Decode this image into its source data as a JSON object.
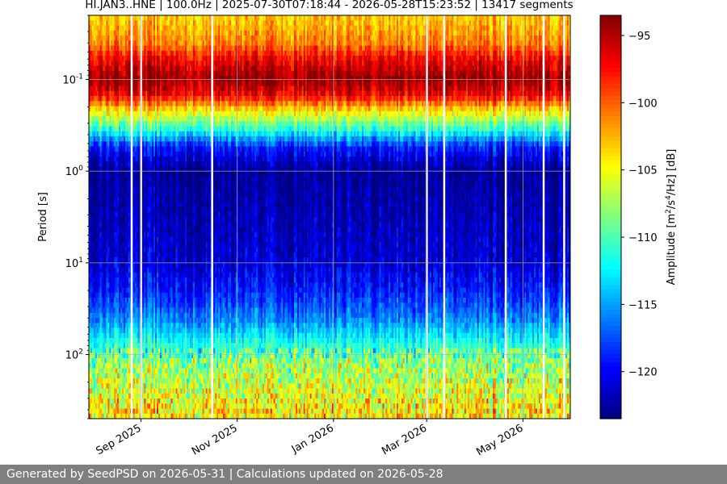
{
  "chart_data": {
    "type": "heatmap",
    "title": "HI.JAN3..HNE | 100.0Hz | 2025-07-30T07:18:44 - 2026-05-28T15:23:52 | 13417 segments",
    "xlabel": "",
    "ylabel": "Period [s]",
    "x_tick_labels": [
      "Sep 2025",
      "Nov 2025",
      "Jan 2026",
      "Mar 2026",
      "May 2026"
    ],
    "x_tick_dates": [
      "2025-09-01",
      "2025-11-01",
      "2026-01-01",
      "2026-03-01",
      "2026-05-01"
    ],
    "xlim": [
      "2025-07-30",
      "2026-05-31"
    ],
    "y_scale": "log",
    "ylim": [
      0.02,
      500
    ],
    "y_reversed": true,
    "y_ticks": [
      0.1,
      1,
      10,
      100
    ],
    "y_tick_labels": [
      "10^{-1}",
      "10^{0}",
      "10^{1}",
      "10^{2}"
    ],
    "grid": true,
    "colorbar": {
      "label": "Amplitude [m^2/s^4/Hz] [dB]",
      "cmap": "jet",
      "range": [
        -123.5,
        -93.5
      ],
      "ticks": [
        -95,
        -100,
        -105,
        -110,
        -115,
        -120
      ]
    },
    "psd_profile": [
      {
        "period": 0.022,
        "db": -103
      },
      {
        "period": 0.04,
        "db": -101
      },
      {
        "period": 0.06,
        "db": -97
      },
      {
        "period": 0.1,
        "db": -94
      },
      {
        "period": 0.15,
        "db": -97
      },
      {
        "period": 0.22,
        "db": -104
      },
      {
        "period": 0.35,
        "db": -111
      },
      {
        "period": 0.55,
        "db": -119
      },
      {
        "period": 1,
        "db": -123
      },
      {
        "period": 3,
        "db": -122
      },
      {
        "period": 10,
        "db": -121
      },
      {
        "period": 20,
        "db": -119
      },
      {
        "period": 40,
        "db": -116
      },
      {
        "period": 70,
        "db": -112
      },
      {
        "period": 120,
        "db": -108
      },
      {
        "period": 300,
        "db": -105
      },
      {
        "period": 500,
        "db": -104
      }
    ],
    "gap_dates": [
      "2025-08-26",
      "2025-09-01",
      "2025-10-16",
      "2026-03-01",
      "2026-03-12",
      "2026-04-20",
      "2026-05-14",
      "2026-05-27"
    ]
  },
  "footer": {
    "text": "Generated by SeedPSD on 2026-05-31 | Calculations updated on 2026-05-28"
  }
}
